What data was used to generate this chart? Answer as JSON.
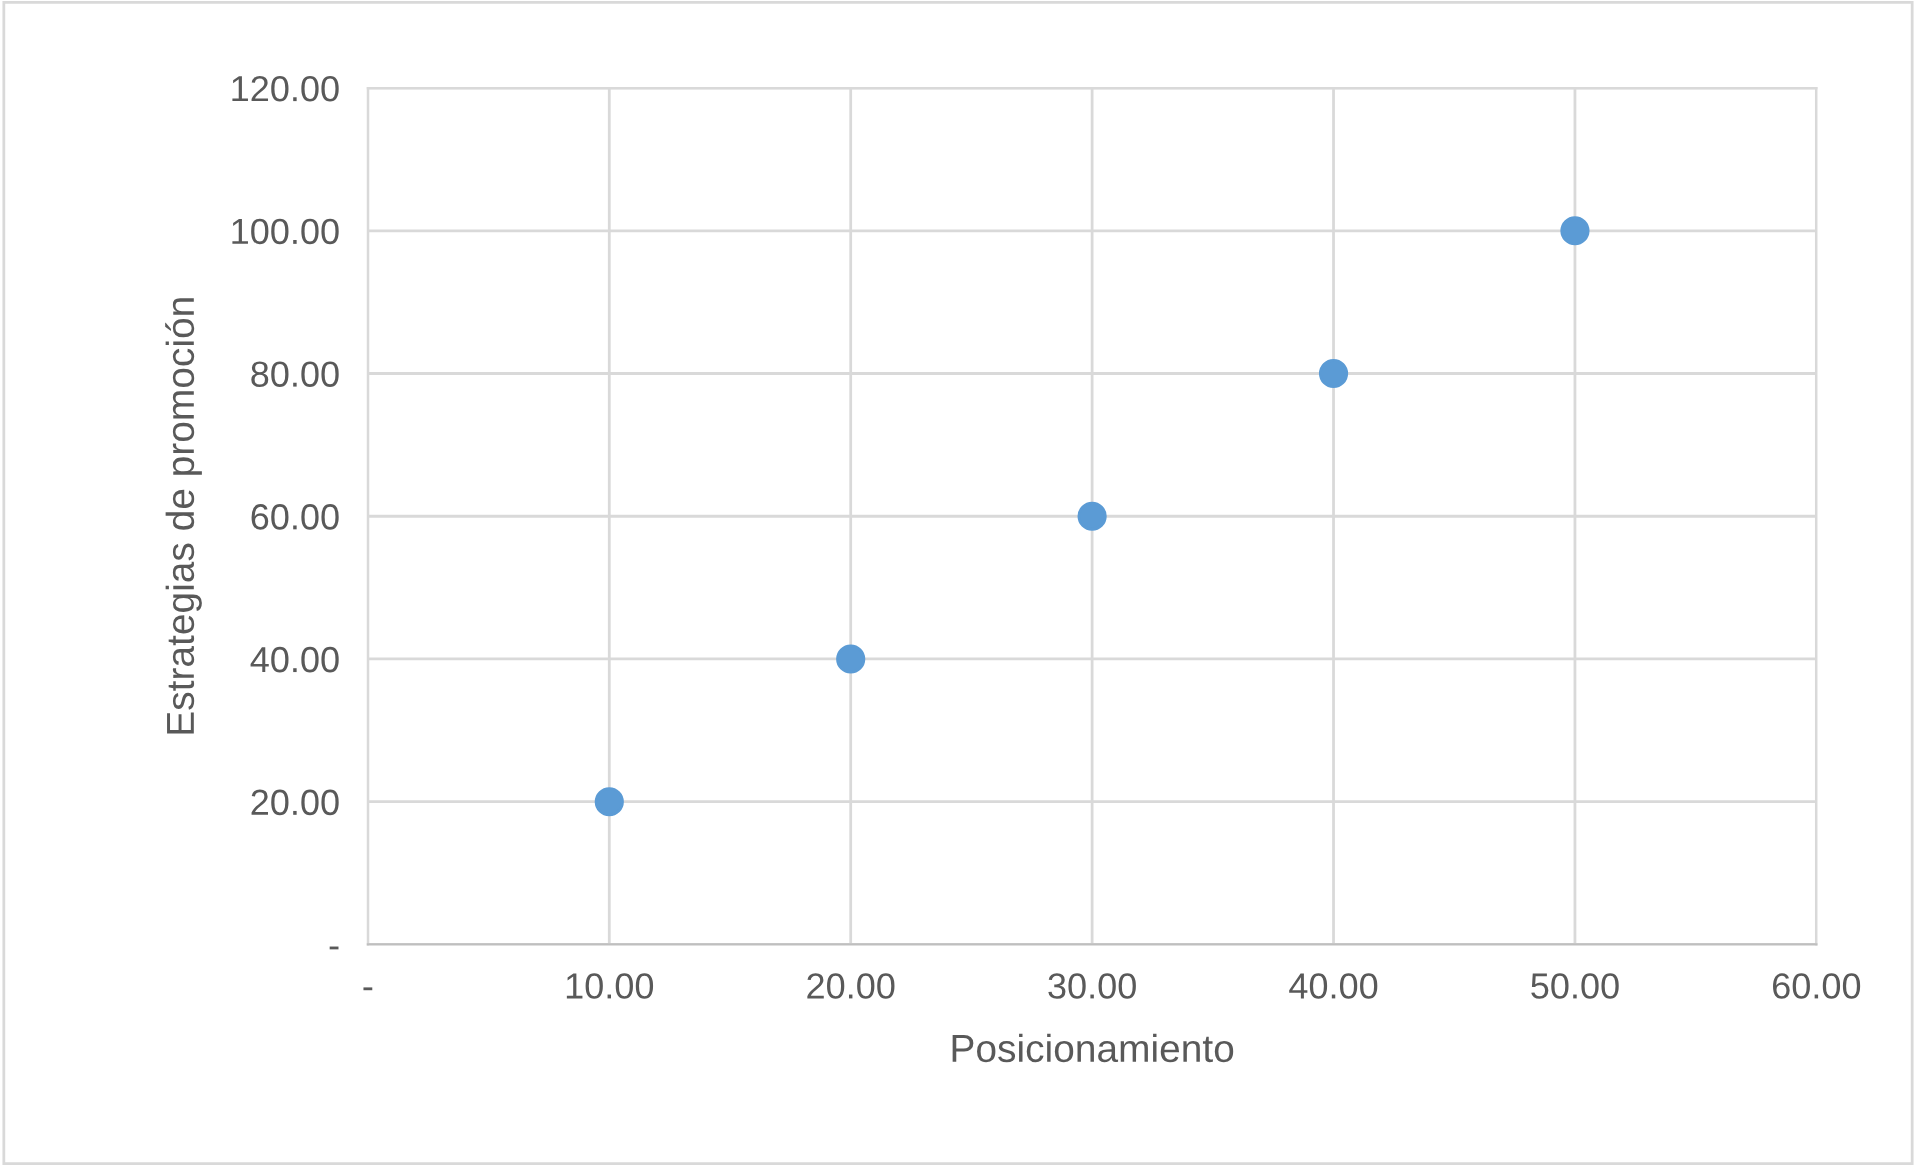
{
  "chart_data": {
    "type": "scatter",
    "xlabel": "Posicionamiento",
    "ylabel": "Estrategias de promoción",
    "x": [
      10,
      20,
      30,
      40,
      50
    ],
    "series": [
      {
        "color": "#5b9bd5",
        "values": [
          20,
          40,
          60,
          80,
          100
        ]
      }
    ],
    "xlim": [
      0,
      60
    ],
    "xticks": [
      {
        "value": 0,
        "label": "-"
      },
      {
        "value": 10,
        "label": "10.00"
      },
      {
        "value": 20,
        "label": "20.00"
      },
      {
        "value": 30,
        "label": "30.00"
      },
      {
        "value": 40,
        "label": "40.00"
      },
      {
        "value": 50,
        "label": "50.00"
      },
      {
        "value": 60,
        "label": "60.00"
      }
    ],
    "ylim": [
      0,
      120
    ],
    "yticks": [
      {
        "value": 0,
        "label": "-"
      },
      {
        "value": 20,
        "label": "20.00"
      },
      {
        "value": 40,
        "label": "40.00"
      },
      {
        "value": 60,
        "label": "60.00"
      },
      {
        "value": 80,
        "label": "80.00"
      },
      {
        "value": 100,
        "label": "100.00"
      },
      {
        "value": 120,
        "label": "120.00"
      }
    ],
    "grid": true,
    "marker": "circle",
    "legend": false
  }
}
